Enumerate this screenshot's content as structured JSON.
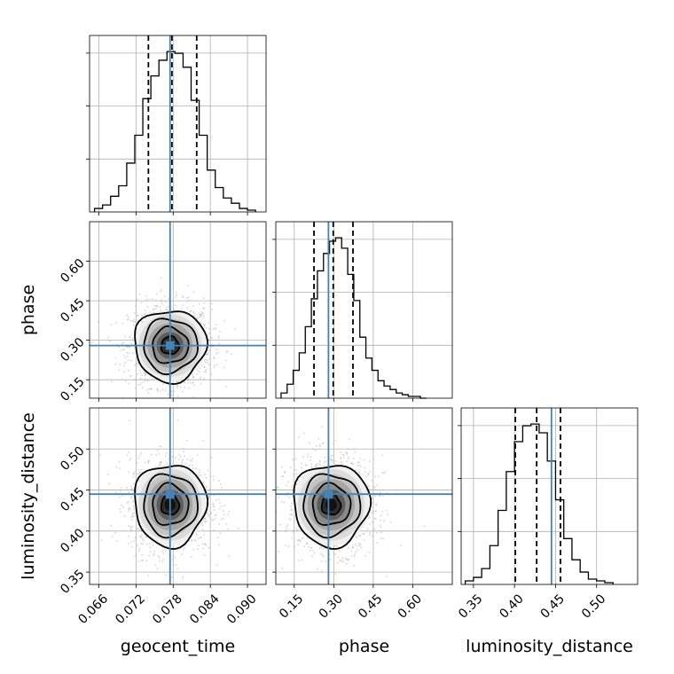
{
  "chart_data": {
    "type": "corner",
    "parameters": [
      "geocent_time",
      "phase",
      "luminosity_distance"
    ],
    "truths": {
      "geocent_time": 0.0775,
      "phase": 0.28,
      "luminosity_distance": 0.445
    },
    "axes": {
      "geocent_time": {
        "label": "geocent_time",
        "range": [
          0.0645,
          0.093
        ],
        "ticks": [
          0.066,
          0.072,
          0.078,
          0.084,
          0.09
        ],
        "tick_labels": [
          "0.066",
          "0.072",
          "0.078",
          "0.084",
          "0.090"
        ]
      },
      "phase": {
        "label": "phase",
        "range": [
          0.08,
          0.75
        ],
        "ticks": [
          0.15,
          0.3,
          0.45,
          0.6
        ],
        "tick_labels": [
          "0.15",
          "0.30",
          "0.45",
          "0.60"
        ]
      },
      "luminosity_distance": {
        "label": "luminosity_distance",
        "range": [
          0.335,
          0.55
        ],
        "ticks": [
          0.35,
          0.4,
          0.45,
          0.5
        ],
        "tick_labels": [
          "0.35",
          "0.40",
          "0.45",
          "0.50"
        ]
      }
    },
    "marginals": [
      {
        "parameter": "geocent_time",
        "bin_edges": [
          0.0653,
          0.0666,
          0.0679,
          0.0692,
          0.0705,
          0.0718,
          0.0731,
          0.0744,
          0.0757,
          0.077,
          0.0783,
          0.0796,
          0.0809,
          0.0822,
          0.0835,
          0.0848,
          0.0861,
          0.0874,
          0.0887,
          0.09,
          0.0913
        ],
        "counts": [
          2,
          4,
          9,
          15,
          28,
          44,
          65,
          78,
          87,
          92,
          91,
          83,
          64,
          44,
          24,
          14,
          8,
          5,
          2,
          1
        ],
        "quantiles": [
          0.074,
          0.0778,
          0.0818
        ]
      },
      {
        "parameter": "phase",
        "bin_edges": [
          0.1,
          0.123,
          0.146,
          0.169,
          0.192,
          0.215,
          0.238,
          0.261,
          0.284,
          0.307,
          0.33,
          0.353,
          0.376,
          0.399,
          0.422,
          0.445,
          0.468,
          0.491,
          0.514,
          0.537,
          0.56,
          0.583,
          0.606,
          0.629,
          0.652
        ],
        "counts": [
          3,
          8,
          16,
          26,
          41,
          57,
          73,
          83,
          90,
          92,
          86,
          71,
          56,
          35,
          23,
          16,
          10,
          7,
          5,
          3,
          2,
          1,
          1,
          0
        ],
        "quantiles": [
          0.225,
          0.298,
          0.373
        ]
      },
      {
        "parameter": "luminosity_distance",
        "bin_edges": [
          0.34,
          0.35,
          0.36,
          0.37,
          0.38,
          0.39,
          0.4,
          0.41,
          0.42,
          0.43,
          0.44,
          0.45,
          0.46,
          0.47,
          0.48,
          0.49,
          0.5,
          0.51,
          0.52
        ],
        "counts": [
          2,
          4,
          9,
          22,
          42,
          64,
          81,
          90,
          91,
          86,
          70,
          48,
          26,
          14,
          7,
          3,
          2,
          1
        ],
        "quantiles": [
          0.401,
          0.427,
          0.456
        ]
      }
    ],
    "joint": [
      {
        "x": "geocent_time",
        "y": "phase",
        "center": [
          0.0775,
          0.28
        ],
        "sigma": [
          0.0029,
          0.068
        ],
        "contour_levels_sigma": [
          0.5,
          1.0,
          1.5,
          2.0
        ]
      },
      {
        "x": "geocent_time",
        "y": "luminosity_distance",
        "center": [
          0.0775,
          0.432
        ],
        "sigma": [
          0.0029,
          0.025
        ],
        "contour_levels_sigma": [
          0.5,
          1.0,
          1.5,
          2.0
        ]
      },
      {
        "x": "phase",
        "y": "luminosity_distance",
        "center": [
          0.29,
          0.432
        ],
        "sigma": [
          0.072,
          0.025
        ],
        "contour_levels_sigma": [
          0.5,
          1.0,
          1.5,
          2.0
        ]
      }
    ],
    "grid": true,
    "colors": {
      "histogram": "#000000",
      "truth": "#4682b4",
      "quantile": "#000000",
      "grid": "#b0b0b0",
      "scatter": "#b4b4b4"
    }
  }
}
